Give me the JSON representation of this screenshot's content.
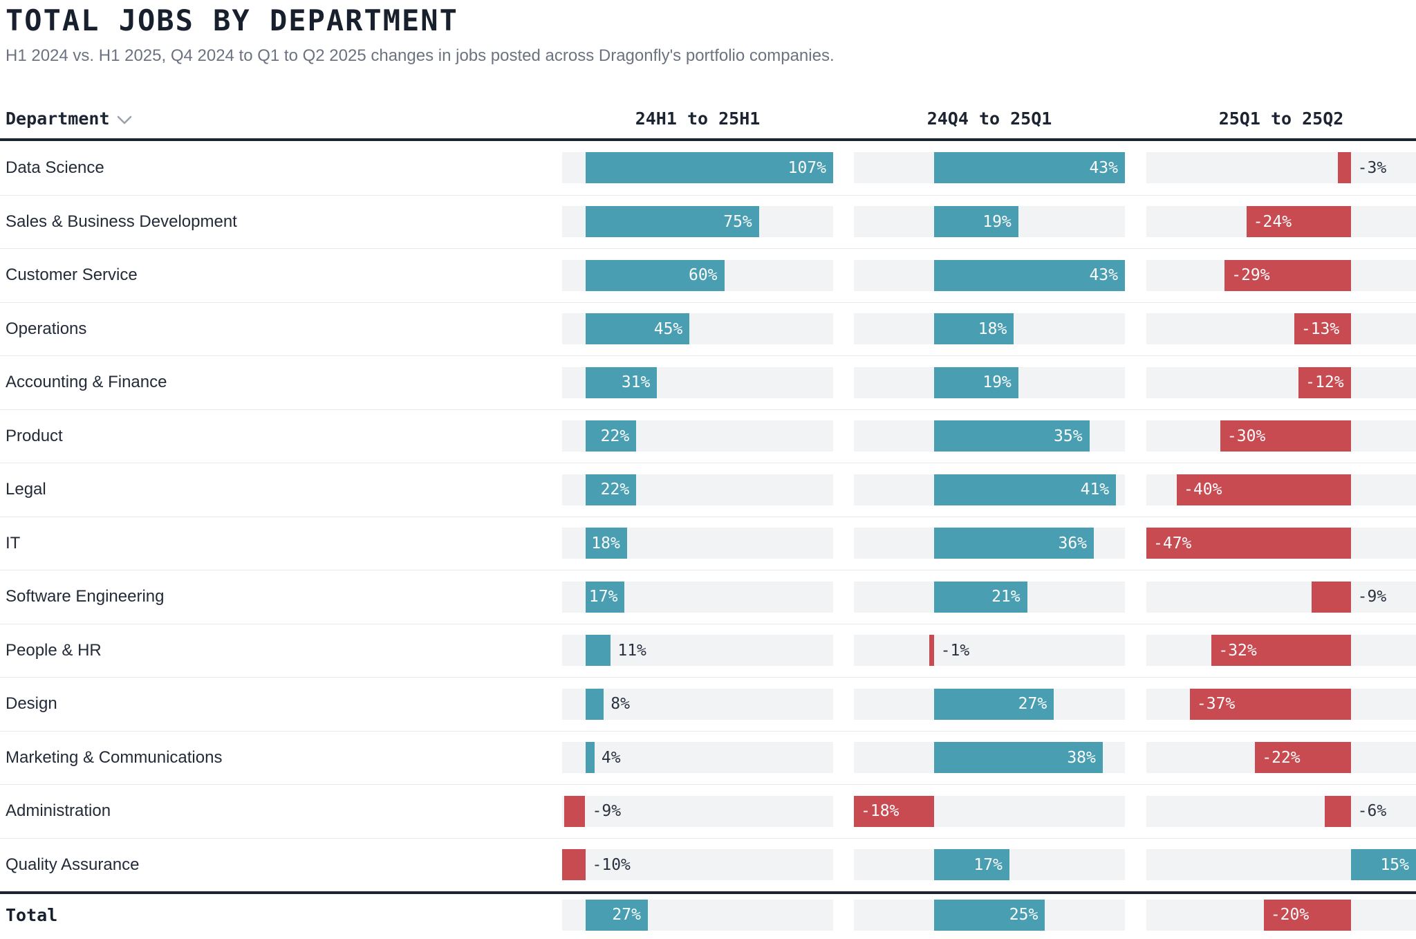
{
  "header": {
    "title": "TOTAL JOBS BY DEPARTMENT",
    "subtitle": "H1 2024 vs. H1 2025, Q4 2024 to Q1 to Q2 2025 changes in jobs posted across Dragonfly's portfolio companies."
  },
  "table": {
    "department_header": "Department",
    "sort_icon": "chevron-down-icon",
    "total_label": "Total"
  },
  "colors": {
    "positive": "#4a9eb1",
    "negative": "#c94b52",
    "track": "#f2f3f5",
    "header_dark": "#1b2430",
    "inside_label": "#fbfdfe",
    "outside_label": "#2a3240"
  },
  "chart_data": {
    "type": "bar",
    "orientation": "horizontal",
    "unit": "%",
    "columns": [
      {
        "label": "24H1 to 25H1",
        "min": -10,
        "max": 107
      },
      {
        "label": "24Q4 to 25Q1",
        "min": -18,
        "max": 43
      },
      {
        "label": "25Q1 to 25Q2",
        "min": -47,
        "max": 15
      }
    ],
    "rows": [
      {
        "department": "Data Science",
        "values": [
          107,
          43,
          -3
        ],
        "labels": [
          "107%",
          "43%",
          "-3%"
        ],
        "inside": [
          true,
          true,
          false
        ]
      },
      {
        "department": "Sales & Business Development",
        "values": [
          75,
          19,
          -24
        ],
        "labels": [
          "75%",
          "19%",
          "-24%"
        ],
        "inside": [
          true,
          true,
          true
        ]
      },
      {
        "department": "Customer Service",
        "values": [
          60,
          43,
          -29
        ],
        "labels": [
          "60%",
          "43%",
          "-29%"
        ],
        "inside": [
          true,
          true,
          true
        ]
      },
      {
        "department": "Operations",
        "values": [
          45,
          18,
          -13
        ],
        "labels": [
          "45%",
          "18%",
          "-13%"
        ],
        "inside": [
          true,
          true,
          true
        ]
      },
      {
        "department": "Accounting & Finance",
        "values": [
          31,
          19,
          -12
        ],
        "labels": [
          "31%",
          "19%",
          "-12%"
        ],
        "inside": [
          true,
          true,
          true
        ]
      },
      {
        "department": "Product",
        "values": [
          22,
          35,
          -30
        ],
        "labels": [
          "22%",
          "35%",
          "-30%"
        ],
        "inside": [
          true,
          true,
          true
        ]
      },
      {
        "department": "Legal",
        "values": [
          22,
          41,
          -40
        ],
        "labels": [
          "22%",
          "41%",
          "-40%"
        ],
        "inside": [
          true,
          true,
          true
        ]
      },
      {
        "department": "IT",
        "values": [
          18,
          36,
          -47
        ],
        "labels": [
          "18%",
          "36%",
          "-47%"
        ],
        "inside": [
          true,
          true,
          true
        ]
      },
      {
        "department": "Software Engineering",
        "values": [
          17,
          21,
          -9
        ],
        "labels": [
          "17%",
          "21%",
          "-9%"
        ],
        "inside": [
          true,
          true,
          false
        ]
      },
      {
        "department": "People & HR",
        "values": [
          11,
          -1,
          -32
        ],
        "labels": [
          "11%",
          "-1%",
          "-32%"
        ],
        "inside": [
          false,
          false,
          true
        ]
      },
      {
        "department": "Design",
        "values": [
          8,
          27,
          -37
        ],
        "labels": [
          "8%",
          "27%",
          "-37%"
        ],
        "inside": [
          false,
          true,
          true
        ]
      },
      {
        "department": "Marketing & Communications",
        "values": [
          4,
          38,
          -22
        ],
        "labels": [
          "4%",
          "38%",
          "-22%"
        ],
        "inside": [
          false,
          true,
          true
        ]
      },
      {
        "department": "Administration",
        "values": [
          -9,
          -18,
          -6
        ],
        "labels": [
          "-9%",
          "-18%",
          "-6%"
        ],
        "inside": [
          false,
          true,
          false
        ]
      },
      {
        "department": "Quality Assurance",
        "values": [
          -10,
          17,
          15
        ],
        "labels": [
          "-10%",
          "17%",
          "15%"
        ],
        "inside": [
          false,
          true,
          true
        ]
      }
    ],
    "total_row": {
      "department": "Total",
      "values": [
        27,
        25,
        -20
      ],
      "labels": [
        "27%",
        "25%",
        "-20%"
      ],
      "inside": [
        true,
        true,
        true
      ]
    }
  }
}
